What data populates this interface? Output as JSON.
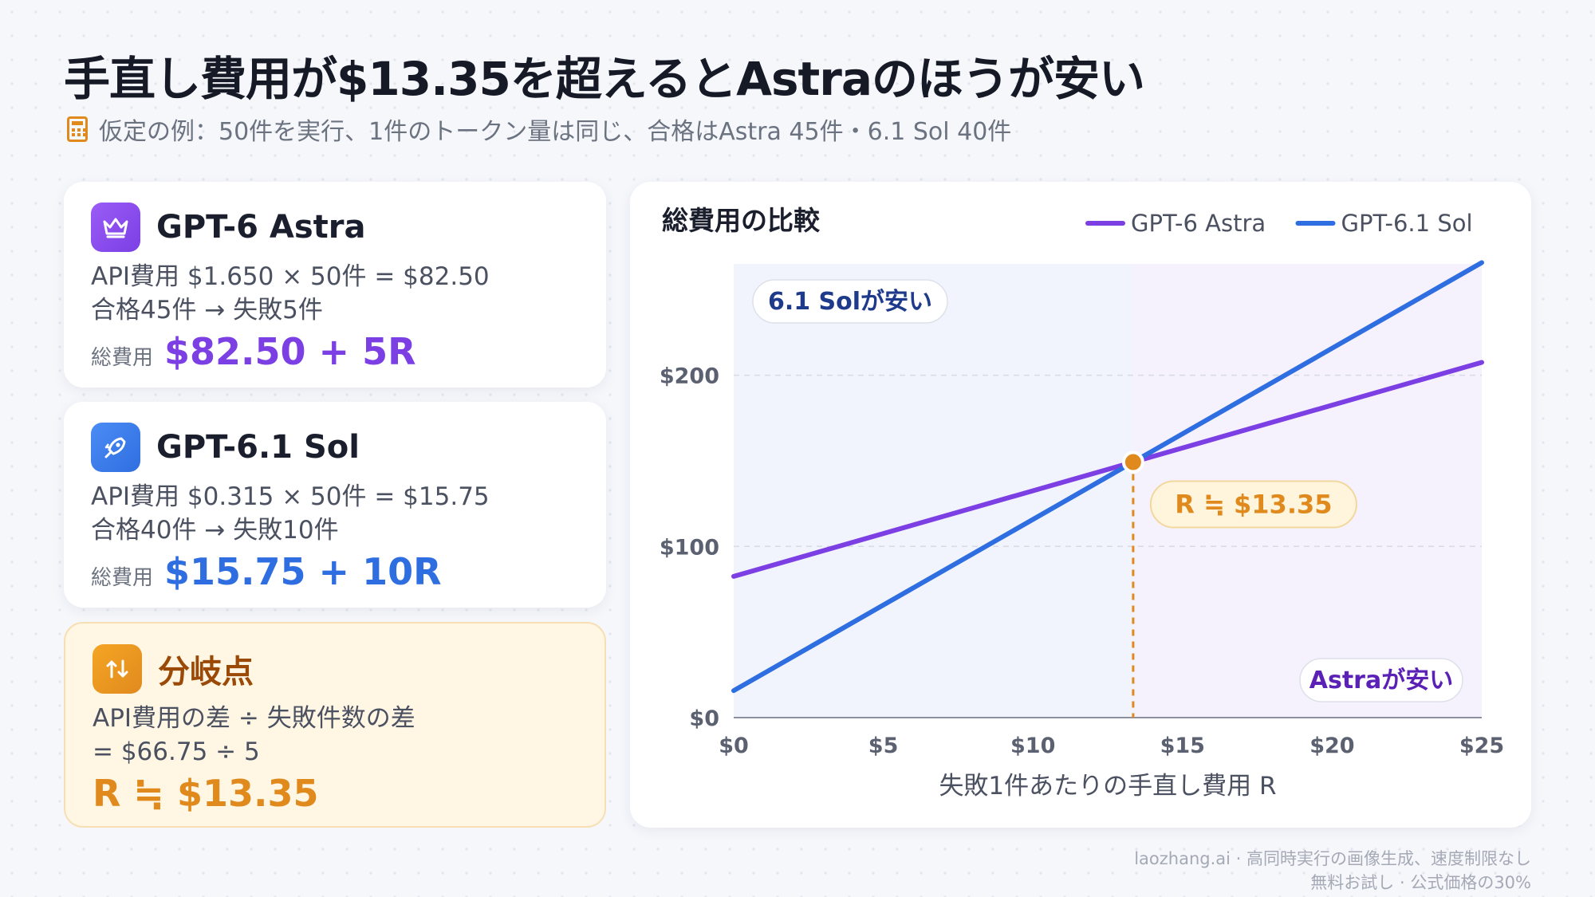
{
  "title": "手直し費用が$13.35を超えるとAstraのほうが安い",
  "subtitle": "仮定の例：50件を実行、1件のトークン量は同じ、合格はAstra 45件・6.1 Sol 40件",
  "subtitle_icon": "calculator-icon",
  "cards": {
    "astra": {
      "name": "GPT-6 Astra",
      "icon": "crown-icon",
      "api_cost": "API費用 $1.650 × 50件 = $82.50",
      "pass_fail": "合格45件 → 失敗5件",
      "total_label": "総費用",
      "total_value": "$82.50 + 5R",
      "color": "#7b3fe4"
    },
    "sol": {
      "name": "GPT-6.1 Sol",
      "icon": "rocket-icon",
      "api_cost": "API費用 $0.315 × 50件 = $15.75",
      "pass_fail": "合格40件 → 失敗10件",
      "total_label": "総費用",
      "total_value": "$15.75 + 10R",
      "color": "#2f6ee0"
    },
    "branch": {
      "name": "分岐点",
      "icon": "swap-arrows-icon",
      "line1": "API費用の差 ÷ 失敗件数の差",
      "line2": "= $66.75 ÷ 5",
      "result": "R ≒ $13.35",
      "color": "#e08a1e"
    }
  },
  "chart_data": {
    "type": "line",
    "title": "総費用の比較",
    "xlabel": "失敗1件あたりの手直し費用 R",
    "ylabel": "",
    "xlim": [
      0,
      25
    ],
    "ylim": [
      0,
      265
    ],
    "x_ticks": [
      0,
      5,
      10,
      15,
      20,
      25
    ],
    "x_tick_labels": [
      "$0",
      "$5",
      "$10",
      "$15",
      "$20",
      "$25"
    ],
    "y_ticks": [
      0,
      100,
      200
    ],
    "y_tick_labels": [
      "$0",
      "$100",
      "$200"
    ],
    "grid": true,
    "legend_position": "top-right",
    "series": [
      {
        "name": "GPT-6 Astra",
        "x": [
          0,
          25
        ],
        "y": [
          82.5,
          207.5
        ],
        "color": "#7b3fe4"
      },
      {
        "name": "GPT-6.1 Sol",
        "x": [
          0,
          25
        ],
        "y": [
          15.75,
          265.75
        ],
        "color": "#2f6ee0"
      }
    ],
    "intersection": {
      "x": 13.35,
      "y": 149.25,
      "label": "R ≒ $13.35",
      "color": "#e08a1e"
    },
    "regions": [
      {
        "label": "6.1 Solが安い",
        "x_from": 0,
        "x_to": 13.35,
        "color": "#f1f4fd",
        "text_color": "#1e3a8a",
        "label_position": "top-left"
      },
      {
        "label": "Astraが安い",
        "x_from": 13.35,
        "x_to": 25,
        "color": "#f5f1fd",
        "text_color": "#5b21b6",
        "label_position": "bottom-right"
      }
    ]
  },
  "footer": {
    "line1": "laozhang.ai · 高同時実行の画像生成、速度制限なし",
    "line2": "無料お試し · 公式価格の30%"
  }
}
